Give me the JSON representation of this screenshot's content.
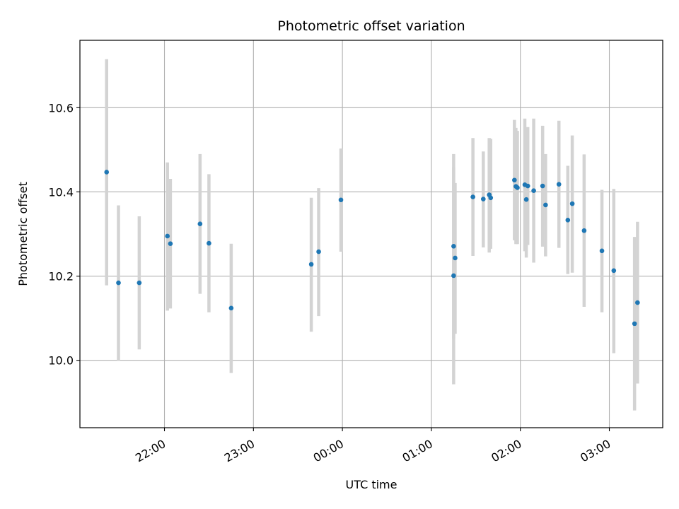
{
  "chart_data": {
    "type": "scatter",
    "title": "Photometric offset variation",
    "xlabel": "UTC time",
    "ylabel": "Photometric offset",
    "x_ticks": [
      "22:00",
      "23:00",
      "00:00",
      "01:00",
      "02:00",
      "03:00"
    ],
    "y_ticks": [
      "10.0",
      "10.2",
      "10.4",
      "10.6"
    ],
    "xlim": [
      "21:03",
      "03:36"
    ],
    "ylim": [
      9.84,
      10.76
    ],
    "grid": true,
    "colors": {
      "point": "#1f77b4",
      "errorbar": "#d3d3d3",
      "grid": "#b0b0b0"
    },
    "points": [
      {
        "x": "21:21",
        "y": 10.447,
        "lo": 10.178,
        "hi": 10.715
      },
      {
        "x": "21:29",
        "y": 10.184,
        "lo": 10.0,
        "hi": 10.368
      },
      {
        "x": "21:43",
        "y": 10.184,
        "lo": 10.026,
        "hi": 10.342
      },
      {
        "x": "22:02",
        "y": 10.295,
        "lo": 10.118,
        "hi": 10.47
      },
      {
        "x": "22:04",
        "y": 10.277,
        "lo": 10.123,
        "hi": 10.431
      },
      {
        "x": "22:24",
        "y": 10.324,
        "lo": 10.158,
        "hi": 10.49
      },
      {
        "x": "22:30",
        "y": 10.278,
        "lo": 10.114,
        "hi": 10.442
      },
      {
        "x": "22:45",
        "y": 10.124,
        "lo": 9.97,
        "hi": 10.277
      },
      {
        "x": "23:39",
        "y": 10.228,
        "lo": 10.068,
        "hi": 10.386
      },
      {
        "x": "23:44",
        "y": 10.258,
        "lo": 10.105,
        "hi": 10.409
      },
      {
        "x": "23:59",
        "y": 10.381,
        "lo": 10.258,
        "hi": 10.503
      },
      {
        "x": "01:15",
        "y": 10.201,
        "lo": 9.943,
        "hi": 10.458
      },
      {
        "x": "01:15",
        "y": 10.271,
        "lo": 10.052,
        "hi": 10.49
      },
      {
        "x": "01:16",
        "y": 10.243,
        "lo": 10.063,
        "hi": 10.421
      },
      {
        "x": "01:28",
        "y": 10.388,
        "lo": 10.248,
        "hi": 10.528
      },
      {
        "x": "01:35",
        "y": 10.383,
        "lo": 10.268,
        "hi": 10.496
      },
      {
        "x": "01:39",
        "y": 10.393,
        "lo": 10.256,
        "hi": 10.528
      },
      {
        "x": "01:40",
        "y": 10.386,
        "lo": 10.265,
        "hi": 10.526
      },
      {
        "x": "01:56",
        "y": 10.428,
        "lo": 10.285,
        "hi": 10.571
      },
      {
        "x": "01:57",
        "y": 10.413,
        "lo": 10.276,
        "hi": 10.552
      },
      {
        "x": "01:58",
        "y": 10.41,
        "lo": 10.276,
        "hi": 10.545
      },
      {
        "x": "02:03",
        "y": 10.417,
        "lo": 10.259,
        "hi": 10.574
      },
      {
        "x": "02:04",
        "y": 10.382,
        "lo": 10.244,
        "hi": 10.52
      },
      {
        "x": "02:05",
        "y": 10.414,
        "lo": 10.274,
        "hi": 10.554
      },
      {
        "x": "02:09",
        "y": 10.403,
        "lo": 10.232,
        "hi": 10.574
      },
      {
        "x": "02:15",
        "y": 10.414,
        "lo": 10.27,
        "hi": 10.557
      },
      {
        "x": "02:17",
        "y": 10.369,
        "lo": 10.247,
        "hi": 10.49
      },
      {
        "x": "02:26",
        "y": 10.418,
        "lo": 10.267,
        "hi": 10.569
      },
      {
        "x": "02:32",
        "y": 10.333,
        "lo": 10.205,
        "hi": 10.462
      },
      {
        "x": "02:35",
        "y": 10.372,
        "lo": 10.208,
        "hi": 10.534
      },
      {
        "x": "02:43",
        "y": 10.308,
        "lo": 10.127,
        "hi": 10.489
      },
      {
        "x": "02:55",
        "y": 10.26,
        "lo": 10.114,
        "hi": 10.405
      },
      {
        "x": "03:03",
        "y": 10.213,
        "lo": 10.017,
        "hi": 10.407
      },
      {
        "x": "03:17",
        "y": 10.087,
        "lo": 9.881,
        "hi": 10.293
      },
      {
        "x": "03:19",
        "y": 10.137,
        "lo": 9.945,
        "hi": 10.329
      }
    ]
  }
}
